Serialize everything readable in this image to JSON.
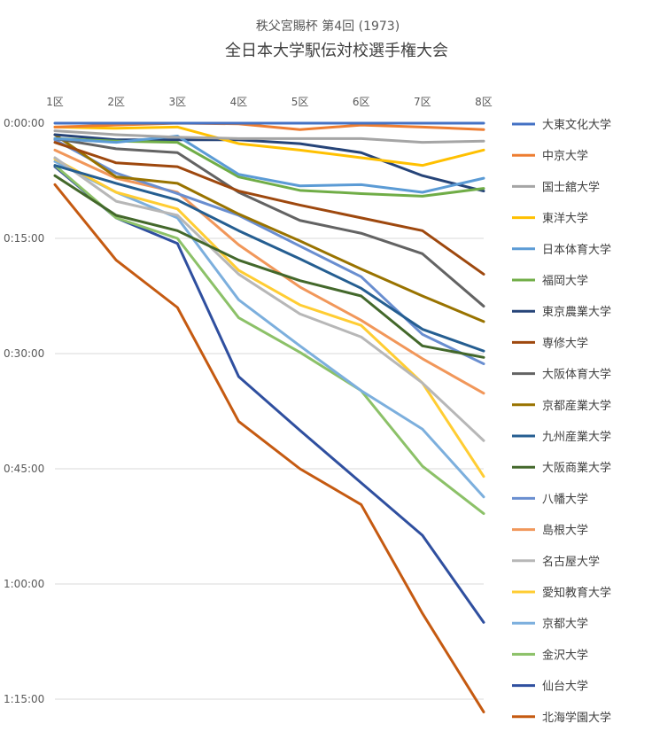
{
  "chart_data": {
    "type": "line",
    "title": "秩父宮賜杯 第4回 (1973)",
    "subtitle": "全日本大学駅伝対校選手権大会",
    "xlabel": "",
    "ylabel": "",
    "categories": [
      "1区",
      "2区",
      "3区",
      "4区",
      "5区",
      "6区",
      "7区",
      "8区"
    ],
    "y_axis_reversed": true,
    "y_unit": "time behind leader (h:mm:ss)",
    "ylim": [
      "0:00:00",
      "1:15:00"
    ],
    "y_ticks": [
      "0:00:00",
      "0:15:00",
      "0:30:00",
      "0:45:00",
      "1:00:00",
      "1:15:00"
    ],
    "grid": true,
    "legend_position": "right",
    "series": [
      {
        "name": "大東文化大学",
        "color": "#4472C4",
        "values": [
          "0:00:00",
          "0:00:00",
          "0:00:00",
          "0:00:00",
          "0:00:00",
          "0:00:00",
          "0:00:00",
          "0:00:00"
        ]
      },
      {
        "name": "中京大学",
        "color": "#ED7D31",
        "values": [
          "0:00:30",
          "0:00:15",
          "0:00:00",
          "0:00:05",
          "0:00:50",
          "0:00:15",
          "0:00:30",
          "0:00:50"
        ]
      },
      {
        "name": "国士舘大学",
        "color": "#A5A5A5",
        "values": [
          "0:01:00",
          "0:01:30",
          "0:01:50",
          "0:02:00",
          "0:02:00",
          "0:02:00",
          "0:02:30",
          "0:02:20"
        ]
      },
      {
        "name": "東洋大学",
        "color": "#FFC000",
        "values": [
          "0:00:30",
          "0:00:40",
          "0:00:30",
          "0:02:40",
          "0:03:30",
          "0:04:30",
          "0:05:30",
          "0:03:30"
        ]
      },
      {
        "name": "日本体育大学",
        "color": "#5B9BD5",
        "values": [
          "0:02:00",
          "0:02:30",
          "0:01:40",
          "0:06:40",
          "0:08:10",
          "0:08:00",
          "0:09:00",
          "0:07:10"
        ]
      },
      {
        "name": "福岡大学",
        "color": "#70AD47",
        "values": [
          "0:02:00",
          "0:02:20",
          "0:02:30",
          "0:07:00",
          "0:08:45",
          "0:09:10",
          "0:09:30",
          "0:08:30"
        ]
      },
      {
        "name": "東京農業大学",
        "color": "#264478",
        "values": [
          "0:01:30",
          "0:02:10",
          "0:02:10",
          "0:02:10",
          "0:02:40",
          "0:03:50",
          "0:06:50",
          "0:08:50"
        ]
      },
      {
        "name": "専修大学",
        "color": "#9E480E",
        "values": [
          "0:02:30",
          "0:05:10",
          "0:05:40",
          "0:08:50",
          "0:10:40",
          "0:12:20",
          "0:14:00",
          "0:19:40"
        ]
      },
      {
        "name": "大阪体育大学",
        "color": "#636363",
        "values": [
          "0:02:00",
          "0:03:20",
          "0:03:50",
          "0:09:00",
          "0:12:40",
          "0:14:20",
          "0:17:00",
          "0:23:50"
        ]
      },
      {
        "name": "京都産業大学",
        "color": "#997300",
        "values": [
          "0:01:30",
          "0:07:00",
          "0:07:50",
          "0:11:50",
          "0:15:20",
          "0:19:00",
          "0:22:30",
          "0:25:50"
        ]
      },
      {
        "name": "九州産業大学",
        "color": "#255E91",
        "values": [
          "0:05:30",
          "0:07:50",
          "0:10:00",
          "0:14:00",
          "0:17:40",
          "0:21:30",
          "0:26:50",
          "0:29:40"
        ]
      },
      {
        "name": "大阪商業大学",
        "color": "#43682B",
        "values": [
          "0:06:50",
          "0:12:00",
          "0:14:00",
          "0:17:50",
          "0:20:30",
          "0:22:30",
          "0:29:00",
          "0:30:30"
        ]
      },
      {
        "name": "八幡大学",
        "color": "#698ED0",
        "values": [
          "0:02:10",
          "0:06:30",
          "0:09:10",
          "0:12:00",
          "0:16:00",
          "0:20:00",
          "0:27:30",
          "0:31:20"
        ]
      },
      {
        "name": "島根大学",
        "color": "#F1975A",
        "values": [
          "0:03:30",
          "0:07:10",
          "0:09:00",
          "0:15:50",
          "0:21:20",
          "0:25:40",
          "0:30:40",
          "0:35:10"
        ]
      },
      {
        "name": "名古屋大学",
        "color": "#B7B7B7",
        "values": [
          "0:04:30",
          "0:10:10",
          "0:12:00",
          "0:19:40",
          "0:24:50",
          "0:27:50",
          "0:33:50",
          "0:41:20"
        ]
      },
      {
        "name": "愛知教育大学",
        "color": "#FFCD33",
        "values": [
          "0:04:40",
          "0:09:00",
          "0:11:10",
          "0:19:10",
          "0:23:40",
          "0:26:20",
          "0:33:50",
          "0:46:00"
        ]
      },
      {
        "name": "京都大学",
        "color": "#7CAFDD",
        "values": [
          "0:05:00",
          "0:09:00",
          "0:12:20",
          "0:23:00",
          "0:29:00",
          "0:34:50",
          "0:39:50",
          "0:48:40"
        ]
      },
      {
        "name": "金沢大学",
        "color": "#8CC168",
        "values": [
          "0:05:30",
          "0:12:20",
          "0:15:00",
          "0:25:20",
          "0:29:50",
          "0:34:50",
          "0:44:40",
          "0:50:50"
        ]
      },
      {
        "name": "仙台大学",
        "color": "#2F4F9F",
        "values": [
          "0:05:40",
          "0:12:20",
          "0:15:40",
          "0:33:00",
          "0:40:00",
          "0:46:50",
          "0:53:40",
          "1:05:00"
        ]
      },
      {
        "name": "北海学園大学",
        "color": "#C55A11",
        "values": [
          "0:08:00",
          "0:17:50",
          "0:24:00",
          "0:38:50",
          "0:45:00",
          "0:49:40",
          "1:03:50",
          "1:16:40"
        ]
      }
    ]
  }
}
